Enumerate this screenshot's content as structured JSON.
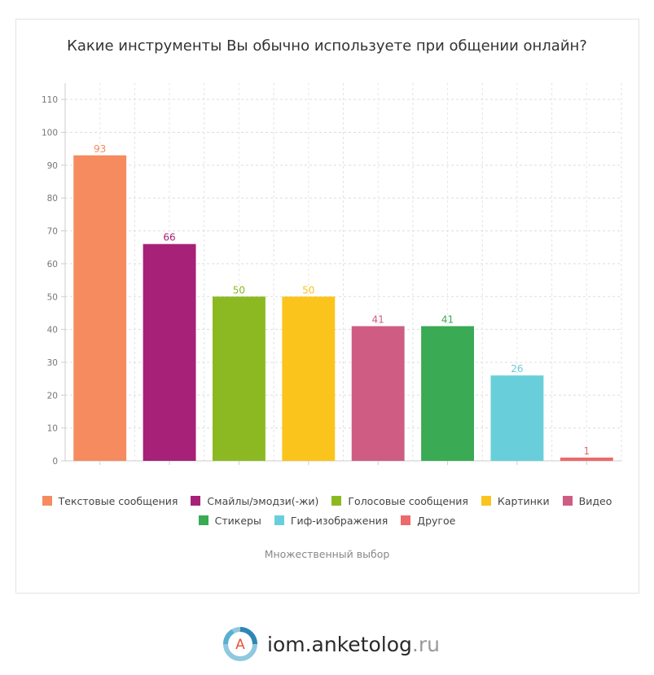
{
  "chart_data": {
    "type": "bar",
    "title": "Какие инструменты Вы обычно используете при общении онлайн?",
    "subtitle": "Множественный выбор",
    "categories": [
      "Текстовые сообщения",
      "Смайлы/эмодзи(-жи)",
      "Голосовые сообщения",
      "Картинки",
      "Видео",
      "Стикеры",
      "Гиф-изображения",
      "Другое"
    ],
    "values": [
      93,
      66,
      50,
      50,
      41,
      41,
      26,
      1
    ],
    "colors": [
      "#f58b5f",
      "#a62177",
      "#8cb922",
      "#fbc41c",
      "#cf5c82",
      "#3aaa54",
      "#68cfda",
      "#ec6a6a"
    ],
    "ylim": [
      0,
      115
    ],
    "yticks": [
      0,
      10,
      20,
      30,
      40,
      50,
      60,
      70,
      80,
      90,
      100,
      110
    ],
    "grid": true,
    "legend_position": "bottom"
  },
  "brand": {
    "logo_letter": "A",
    "name": "iom.anketolog",
    "tld": ".ru"
  }
}
